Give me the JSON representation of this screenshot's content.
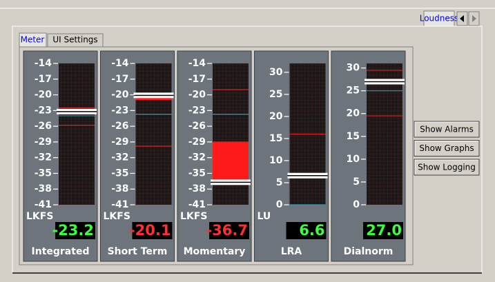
{
  "top_tab": "Loudness",
  "sub_tabs": [
    "Meter",
    "UI Settings"
  ],
  "meters": [
    {
      "label": "Integrated",
      "unit": "LKFS",
      "range": [
        -41,
        -14
      ],
      "ticks": [
        -14,
        -17,
        -20,
        -23,
        -26,
        -29,
        -32,
        -35,
        -38,
        -41
      ],
      "value": -23.2,
      "value_label": "-23.2",
      "readout_color": "#3cff3c",
      "limits": [
        -22.5,
        -25.8
      ],
      "target": -24
    },
    {
      "label": "Short Term",
      "unit": "LKFS",
      "range": [
        -41,
        -14
      ],
      "ticks": [
        -14,
        -17,
        -20,
        -23,
        -26,
        -29,
        -32,
        -35,
        -38,
        -41
      ],
      "value": -20.1,
      "value_label": "-20.1",
      "readout_color": "#ff3030",
      "limits": [
        -29.8
      ],
      "target": -23.7,
      "fill": [
        -20.1,
        -21
      ]
    },
    {
      "label": "Momentary",
      "unit": "LKFS",
      "range": [
        -41,
        -14
      ],
      "ticks": [
        -14,
        -17,
        -20,
        -23,
        -26,
        -29,
        -32,
        -35,
        -38,
        -41
      ],
      "value": -36.7,
      "value_label": "-36.7",
      "readout_color": "#ff3030",
      "limits": [
        -19,
        -29
      ],
      "target": -23.7,
      "fill": [
        -29,
        -36.7
      ]
    },
    {
      "label": "LRA",
      "unit": "LU",
      "range": [
        0,
        32
      ],
      "ticks": [
        0,
        5,
        10,
        15,
        20,
        25,
        30
      ],
      "value": 6.6,
      "value_label": "6.6",
      "readout_color": "#3cff3c",
      "limits": [
        16
      ],
      "target": 0
    },
    {
      "label": "Dialnorm",
      "range": [
        0,
        31
      ],
      "ticks": [
        0,
        5,
        10,
        15,
        20,
        25,
        30
      ],
      "value": 27,
      "value_label": "27.0",
      "readout_color": "#3cff3c",
      "limits": [
        29.5,
        19.5
      ],
      "target": 25
    }
  ],
  "buttons": [
    "Show Alarms",
    "Show Graphs",
    "Show Logging"
  ]
}
